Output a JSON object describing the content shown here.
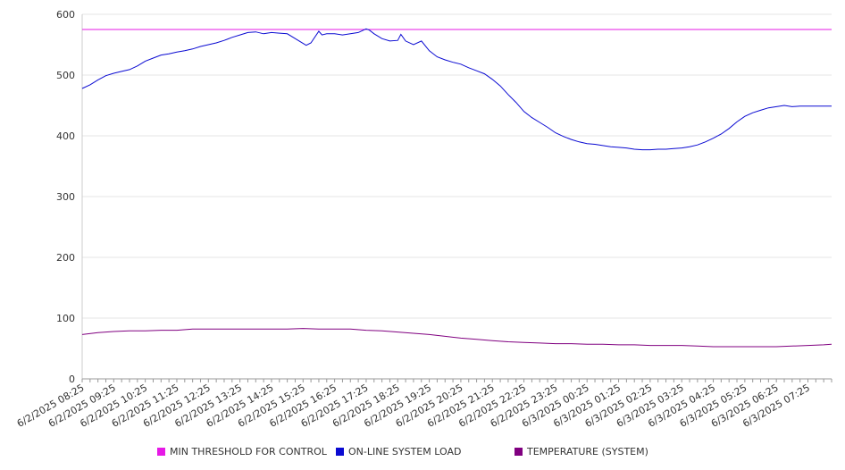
{
  "chart_data": {
    "type": "line",
    "ylim": [
      0,
      600
    ],
    "yticks": [
      0,
      100,
      200,
      300,
      400,
      500,
      600
    ],
    "grid": true,
    "legend_position": "bottom",
    "x_labels": [
      "6/2/2025 08:25",
      "6/2/2025 09:25",
      "6/2/2025 10:25",
      "6/2/2025 11:25",
      "6/2/2025 12:25",
      "6/2/2025 13:25",
      "6/2/2025 14:25",
      "6/2/2025 15:25",
      "6/2/2025 16:25",
      "6/2/2025 17:25",
      "6/2/2025 18:25",
      "6/2/2025 19:25",
      "6/2/2025 20:25",
      "6/2/2025 21:25",
      "6/2/2025 22:25",
      "6/2/2025 23:25",
      "6/3/2025 00:25",
      "6/3/2025 01:25",
      "6/3/2025 02:25",
      "6/3/2025 03:25",
      "6/3/2025 04:25",
      "6/3/2025 05:25",
      "6/3/2025 06:25",
      "6/3/2025 07:25"
    ],
    "series": [
      {
        "name": "MIN THRESHOLD FOR CONTROL",
        "color": "#e619e6",
        "x": [
          0,
          23.75
        ],
        "values": [
          575,
          575
        ]
      },
      {
        "name": "ON-LINE SYSTEM LOAD",
        "color": "#0a0ad2",
        "x": [
          0,
          0.25,
          0.5,
          0.75,
          1,
          1.25,
          1.5,
          1.75,
          2,
          2.25,
          2.5,
          2.75,
          3,
          3.25,
          3.5,
          3.75,
          4,
          4.25,
          4.5,
          4.75,
          5,
          5.25,
          5.5,
          5.75,
          6,
          6.25,
          6.5,
          6.75,
          7,
          7.1,
          7.25,
          7.5,
          7.6,
          7.75,
          8,
          8.25,
          8.5,
          8.75,
          9,
          9.1,
          9.25,
          9.5,
          9.75,
          10,
          10.1,
          10.25,
          10.5,
          10.75,
          11,
          11.25,
          11.5,
          11.75,
          12,
          12.25,
          12.5,
          12.75,
          13,
          13.25,
          13.5,
          13.75,
          14,
          14.25,
          14.5,
          14.75,
          15,
          15.25,
          15.5,
          15.75,
          16,
          16.25,
          16.5,
          16.75,
          17,
          17.25,
          17.5,
          17.75,
          18,
          18.25,
          18.5,
          18.75,
          19,
          19.25,
          19.5,
          19.75,
          20,
          20.25,
          20.5,
          20.75,
          21,
          21.25,
          21.5,
          21.75,
          22,
          22.25,
          22.5,
          22.75,
          23,
          23.25,
          23.5,
          23.75
        ],
        "values": [
          478,
          484,
          492,
          499,
          503,
          506,
          509,
          515,
          523,
          528,
          533,
          535,
          538,
          540,
          543,
          547,
          550,
          553,
          557,
          562,
          566,
          570,
          571,
          568,
          570,
          569,
          568,
          560,
          552,
          549,
          553,
          572,
          566,
          568,
          568,
          566,
          568,
          570,
          576,
          574,
          568,
          560,
          556,
          557,
          567,
          556,
          550,
          556,
          540,
          530,
          525,
          521,
          518,
          512,
          507,
          502,
          493,
          482,
          468,
          455,
          440,
          430,
          422,
          414,
          405,
          399,
          394,
          390,
          387,
          386,
          384,
          382,
          381,
          380,
          378,
          377,
          377,
          378,
          378,
          379,
          380,
          382,
          385,
          390,
          396,
          403,
          412,
          423,
          432,
          438,
          442,
          446,
          448,
          450,
          448,
          449,
          449,
          449,
          449,
          449
        ]
      },
      {
        "name": "TEMPERATURE (SYSTEM)",
        "color": "#800080",
        "x": [
          0,
          0.5,
          1,
          1.5,
          2,
          2.5,
          3,
          3.5,
          4,
          4.5,
          5,
          5.5,
          6,
          6.5,
          7,
          7.5,
          8,
          8.5,
          9,
          9.5,
          10,
          10.5,
          11,
          11.5,
          12,
          12.5,
          13,
          13.5,
          14,
          14.5,
          15,
          15.5,
          16,
          16.5,
          17,
          17.5,
          18,
          18.5,
          19,
          19.5,
          20,
          20.5,
          21,
          21.5,
          22,
          22.5,
          23,
          23.5,
          23.75
        ],
        "values": [
          73,
          76,
          78,
          79,
          79,
          80,
          80,
          82,
          82,
          82,
          82,
          82,
          82,
          82,
          83,
          82,
          82,
          82,
          80,
          79,
          77,
          75,
          73,
          70,
          67,
          65,
          63,
          61,
          60,
          59,
          58,
          58,
          57,
          57,
          56,
          56,
          55,
          55,
          55,
          54,
          53,
          53,
          53,
          53,
          53,
          54,
          55,
          56,
          57
        ]
      }
    ]
  }
}
